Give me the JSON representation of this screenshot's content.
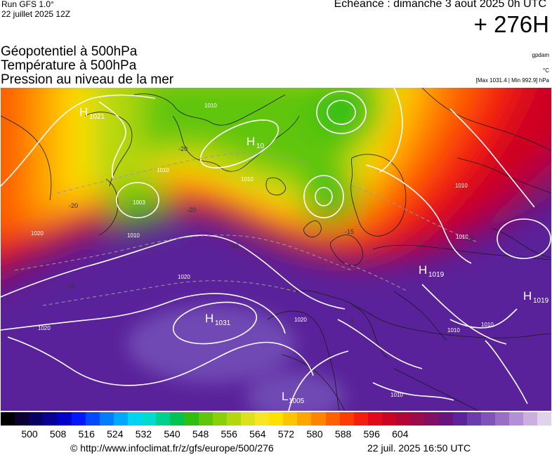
{
  "header": {
    "run": "Run GFS 1.0°",
    "run_date": "22 juillet 2025 12Z",
    "echeance": "Echéance : dimanche 3 aout 2025 0h UTC",
    "hour": "+ 276H",
    "params": [
      "Géopotentiel à 500hPa",
      "Température à 500hPa",
      "Pression au niveau de la mer"
    ],
    "unit_geo": "gpdam",
    "unit_temp": "°C",
    "maxmin": "[Max 1031.4 | Min 992.9] hPa"
  },
  "map": {
    "pressure_centers": [
      {
        "type": "H",
        "value": "1021"
      },
      {
        "type": "H",
        "value": "1031"
      },
      {
        "type": "H",
        "value": "1019"
      },
      {
        "type": "H",
        "value": "1019"
      },
      {
        "type": "H",
        "value": "10"
      },
      {
        "type": "L",
        "value": "1005"
      }
    ],
    "isobar_labels": [
      "1020",
      "1020",
      "1020",
      "1020",
      "1010",
      "1010",
      "1010",
      "1010",
      "1010",
      "1010",
      "1010",
      "1010",
      "1010",
      "1003"
    ],
    "temperature_labels": [
      "-20",
      "-20",
      "-20",
      "-10",
      "-10",
      "-15",
      "-10",
      "-5"
    ]
  },
  "legend": {
    "ticks": [
      "500",
      "508",
      "516",
      "524",
      "532",
      "540",
      "548",
      "556",
      "564",
      "572",
      "580",
      "588",
      "596",
      "604"
    ],
    "colors": [
      "#000000",
      "#0d0030",
      "#0a0063",
      "#070093",
      "#0000c8",
      "#0018ff",
      "#0049ff",
      "#007dff",
      "#00a9ff",
      "#00d4f2",
      "#00dccc",
      "#00d08f",
      "#00c451",
      "#2fbf13",
      "#5fc50d",
      "#8bcf0c",
      "#b5d70f",
      "#dde11b",
      "#f5e822",
      "#ffe100",
      "#ffc400",
      "#ffa500",
      "#ff8400",
      "#ff6100",
      "#ff3c00",
      "#f51d0c",
      "#e3081b",
      "#cc0423",
      "#b20636",
      "#9a0a4d",
      "#830f63",
      "#6a137c",
      "#5c249a",
      "#6a3cae",
      "#8152b8",
      "#9a6ec6",
      "#b48fd3",
      "#cbb0df",
      "#e1d2ec"
    ]
  },
  "footer": {
    "copyright": "© http://www.infoclimat.fr/z/gfs/europe/500/276",
    "generated": "22 juil. 2025 16:50 UTC"
  }
}
